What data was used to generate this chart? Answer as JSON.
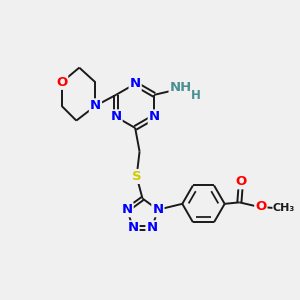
{
  "background_color": "#f0f0f0",
  "atom_colors": {
    "N": "#0000ff",
    "O": "#ff0000",
    "S": "#cccc00",
    "C": "#1a1a1a",
    "H": "#4a9090"
  },
  "bond_color": "#1a1a1a",
  "line_width": 1.4,
  "font_size_atoms": 9.5,
  "font_size_small": 8.5
}
